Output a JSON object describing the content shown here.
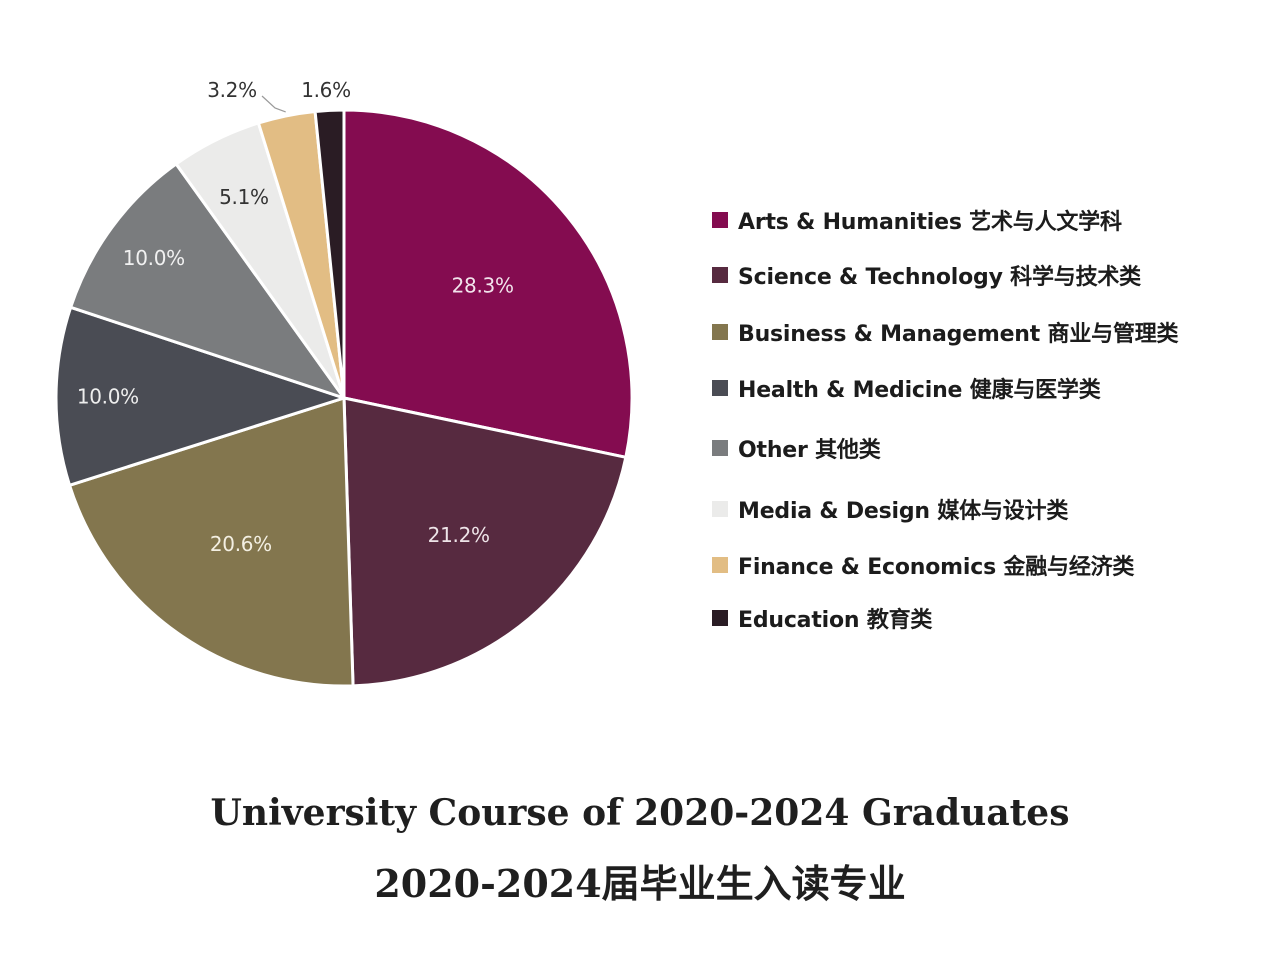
{
  "chart_data": {
    "type": "pie",
    "title": "University Course of 2020-2024 Graduates",
    "subtitle": "2020-2024届毕业生入读专业",
    "legend_position": "right",
    "slices": [
      {
        "label": "Arts & Humanities  艺术与人文学科",
        "value": 28.3,
        "value_label": "28.3%",
        "color": "#840c50",
        "label_color": "#f2e4ec"
      },
      {
        "label": "Science & Technology  科学与技术类",
        "value": 21.2,
        "value_label": "21.2%",
        "color": "#572a40",
        "label_color": "#eee4e8"
      },
      {
        "label": "Business & Management  商业与管理类",
        "value": 20.6,
        "value_label": "20.6%",
        "color": "#83764e",
        "label_color": "#f3efe2"
      },
      {
        "label": "Health & Medicine  健康与医学类",
        "value": 10.0,
        "value_label": "10.0%",
        "color": "#4a4c54",
        "label_color": "#eeeeee"
      },
      {
        "label": "Other  其他类",
        "value": 10.0,
        "value_label": "10.0%",
        "color": "#7a7c7e",
        "label_color": "#f1f1f1"
      },
      {
        "label": "Media & Design  媒体与设计类",
        "value": 5.1,
        "value_label": "5.1%",
        "color": "#ebebea",
        "label_color": "#333333"
      },
      {
        "label": "Finance & Economics  金融与经济类",
        "value": 3.2,
        "value_label": "3.2%",
        "color": "#e2bd84",
        "label_color": "#333333"
      },
      {
        "label": "Education  教育类",
        "value": 1.6,
        "value_label": "1.6%",
        "color": "#2a1c24",
        "label_color": "#333333"
      }
    ]
  }
}
